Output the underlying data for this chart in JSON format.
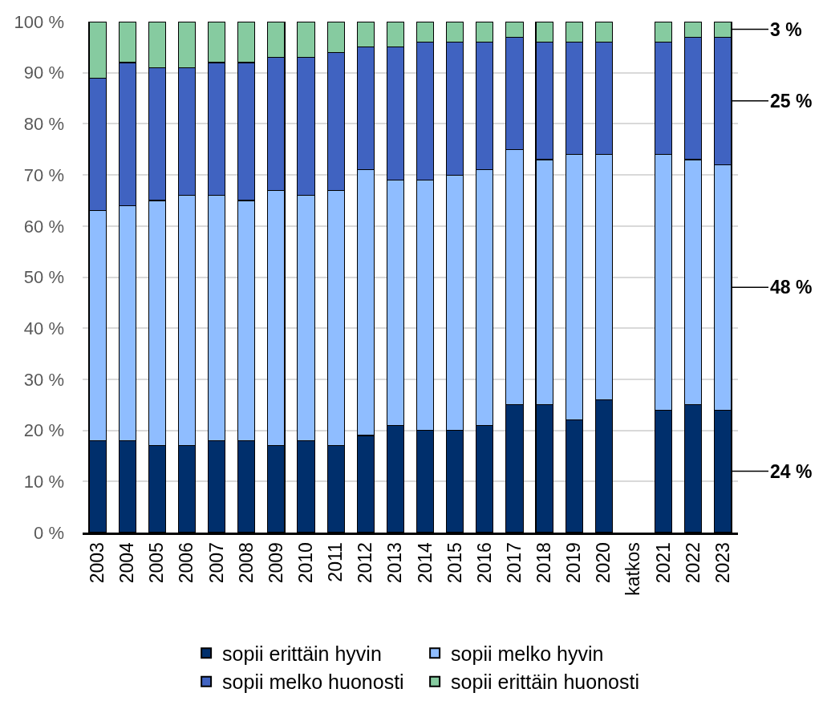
{
  "chart_data": {
    "type": "bar",
    "stacked": true,
    "grid": "y",
    "legend": "bottom",
    "categories": [
      "2003",
      "2004",
      "2005",
      "2006",
      "2007",
      "2008",
      "2009",
      "2010",
      "2011",
      "2012",
      "2013",
      "2014",
      "2015",
      "2016",
      "2017",
      "2018",
      "2019",
      "2020",
      "katkos",
      "2021",
      "2022",
      "2023"
    ],
    "ylim": [
      0,
      100
    ],
    "yticks": [
      {
        "value": 0,
        "label": "0 %"
      },
      {
        "value": 10,
        "label": "10 %"
      },
      {
        "value": 20,
        "label": "20 %"
      },
      {
        "value": 30,
        "label": "30 %"
      },
      {
        "value": 40,
        "label": "40 %"
      },
      {
        "value": 50,
        "label": "50 %"
      },
      {
        "value": 60,
        "label": "60 %"
      },
      {
        "value": 70,
        "label": "70 %"
      },
      {
        "value": 80,
        "label": "80 %"
      },
      {
        "value": 90,
        "label": "90 %"
      },
      {
        "value": 100,
        "label": "100 %"
      }
    ],
    "series": [
      {
        "name": "sopii erittäin hyvin",
        "color": "#002f6c",
        "values": [
          18,
          18,
          17,
          17,
          18,
          18,
          17,
          18,
          17,
          19,
          21,
          20,
          20,
          21,
          25,
          25,
          22,
          26,
          null,
          24,
          25,
          24
        ],
        "value_labels": [
          null,
          null,
          null,
          null,
          null,
          null,
          null,
          null,
          null,
          null,
          null,
          null,
          null,
          null,
          null,
          null,
          null,
          null,
          null,
          null,
          null,
          "24 %"
        ]
      },
      {
        "name": "sopii melko hyvin",
        "color": "#8fbdff",
        "values": [
          45,
          46,
          48,
          49,
          48,
          47,
          50,
          48,
          50,
          52,
          48,
          49,
          50,
          50,
          50,
          48,
          52,
          48,
          null,
          50,
          48,
          48
        ],
        "value_labels": [
          null,
          null,
          null,
          null,
          null,
          null,
          null,
          null,
          null,
          null,
          null,
          null,
          null,
          null,
          null,
          null,
          null,
          null,
          null,
          null,
          null,
          "48 %"
        ]
      },
      {
        "name": "sopii melko huonosti",
        "color": "#4063c1",
        "values": [
          26,
          28,
          26,
          25,
          26,
          27,
          26,
          27,
          27,
          24,
          26,
          27,
          26,
          25,
          22,
          23,
          22,
          22,
          null,
          22,
          24,
          25
        ],
        "value_labels": [
          null,
          null,
          null,
          null,
          null,
          null,
          null,
          null,
          null,
          null,
          null,
          null,
          null,
          null,
          null,
          null,
          null,
          null,
          null,
          null,
          null,
          "25 %"
        ]
      },
      {
        "name": "sopii erittäin huonosti",
        "color": "#86cba0",
        "values": [
          11,
          8,
          9,
          9,
          8,
          8,
          7,
          7,
          6,
          5,
          5,
          4,
          4,
          4,
          3,
          4,
          4,
          4,
          null,
          4,
          3,
          3
        ],
        "value_labels": [
          null,
          null,
          null,
          null,
          null,
          null,
          null,
          null,
          null,
          null,
          null,
          null,
          null,
          null,
          null,
          null,
          null,
          null,
          null,
          null,
          null,
          "3 %"
        ]
      }
    ]
  }
}
